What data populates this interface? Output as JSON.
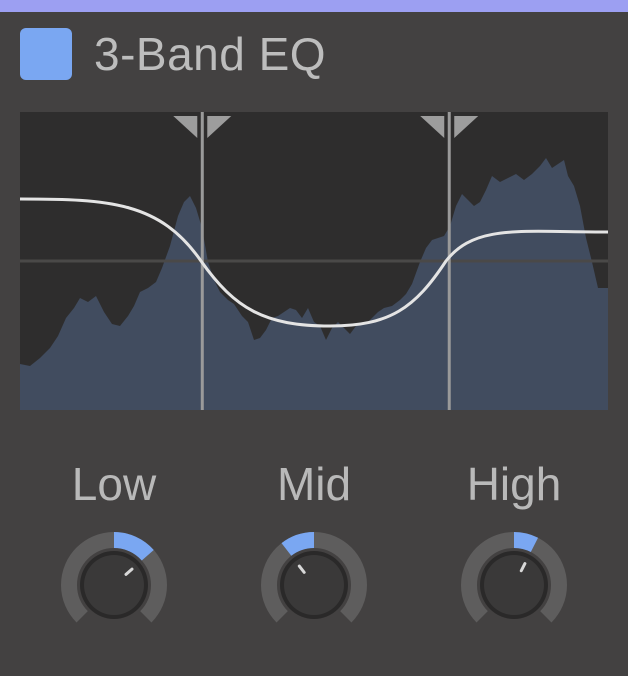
{
  "title": "3-Band EQ",
  "colors": {
    "accent": "#7aa7f2",
    "top_bar": "#9c9ff2",
    "background": "#434141",
    "display_bg": "#2e2d2d",
    "spectrum_fill": "#414c5f",
    "curve": "#e4e4e4"
  },
  "bands": [
    {
      "label": "Low",
      "value": 0.68
    },
    {
      "label": "Mid",
      "value": 0.36
    },
    {
      "label": "High",
      "value": 0.6
    }
  ],
  "crossovers": {
    "low_mid_position": 0.31,
    "mid_high_position": 0.73
  }
}
